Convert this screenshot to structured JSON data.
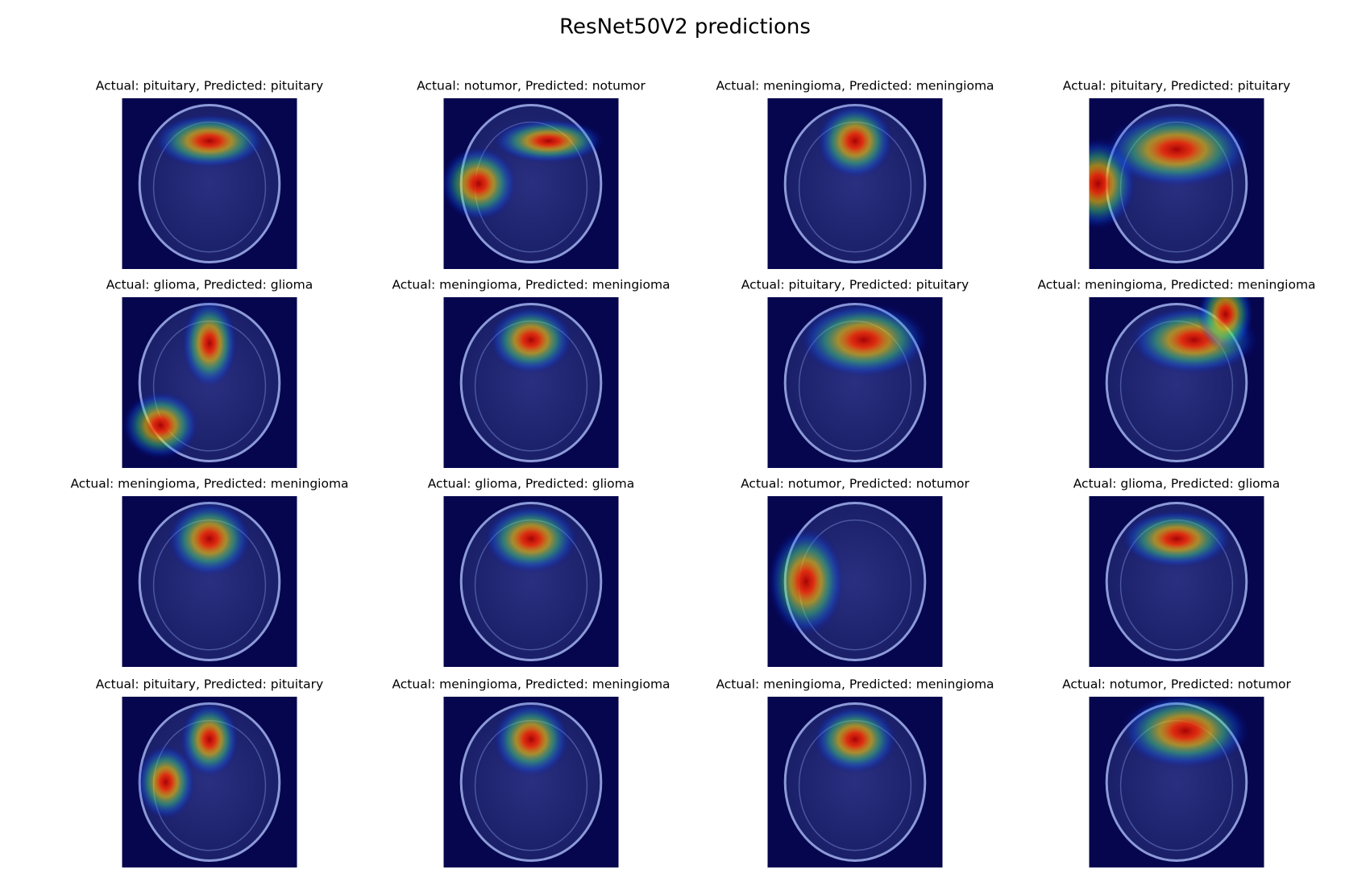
{
  "title": "ResNet50V2 predictions",
  "panels": [
    "Actual: pituitary, Predicted: pituitary",
    "Actual: notumor, Predicted: notumor",
    "Actual: meningioma, Predicted: meningioma",
    "Actual: pituitary, Predicted: pituitary",
    "Actual: glioma, Predicted: glioma",
    "Actual: meningioma, Predicted: meningioma",
    "Actual: pituitary, Predicted: pituitary",
    "Actual: meningioma, Predicted: meningioma",
    "Actual: meningioma, Predicted: meningioma",
    "Actual: glioma, Predicted: glioma",
    "Actual: notumor, Predicted: notumor",
    "Actual: glioma, Predicted: glioma",
    "Actual: pituitary, Predicted: pituitary",
    "Actual: meningioma, Predicted: meningioma",
    "Actual: meningioma, Predicted: meningioma",
    "Actual: notumor, Predicted: notumor"
  ]
}
